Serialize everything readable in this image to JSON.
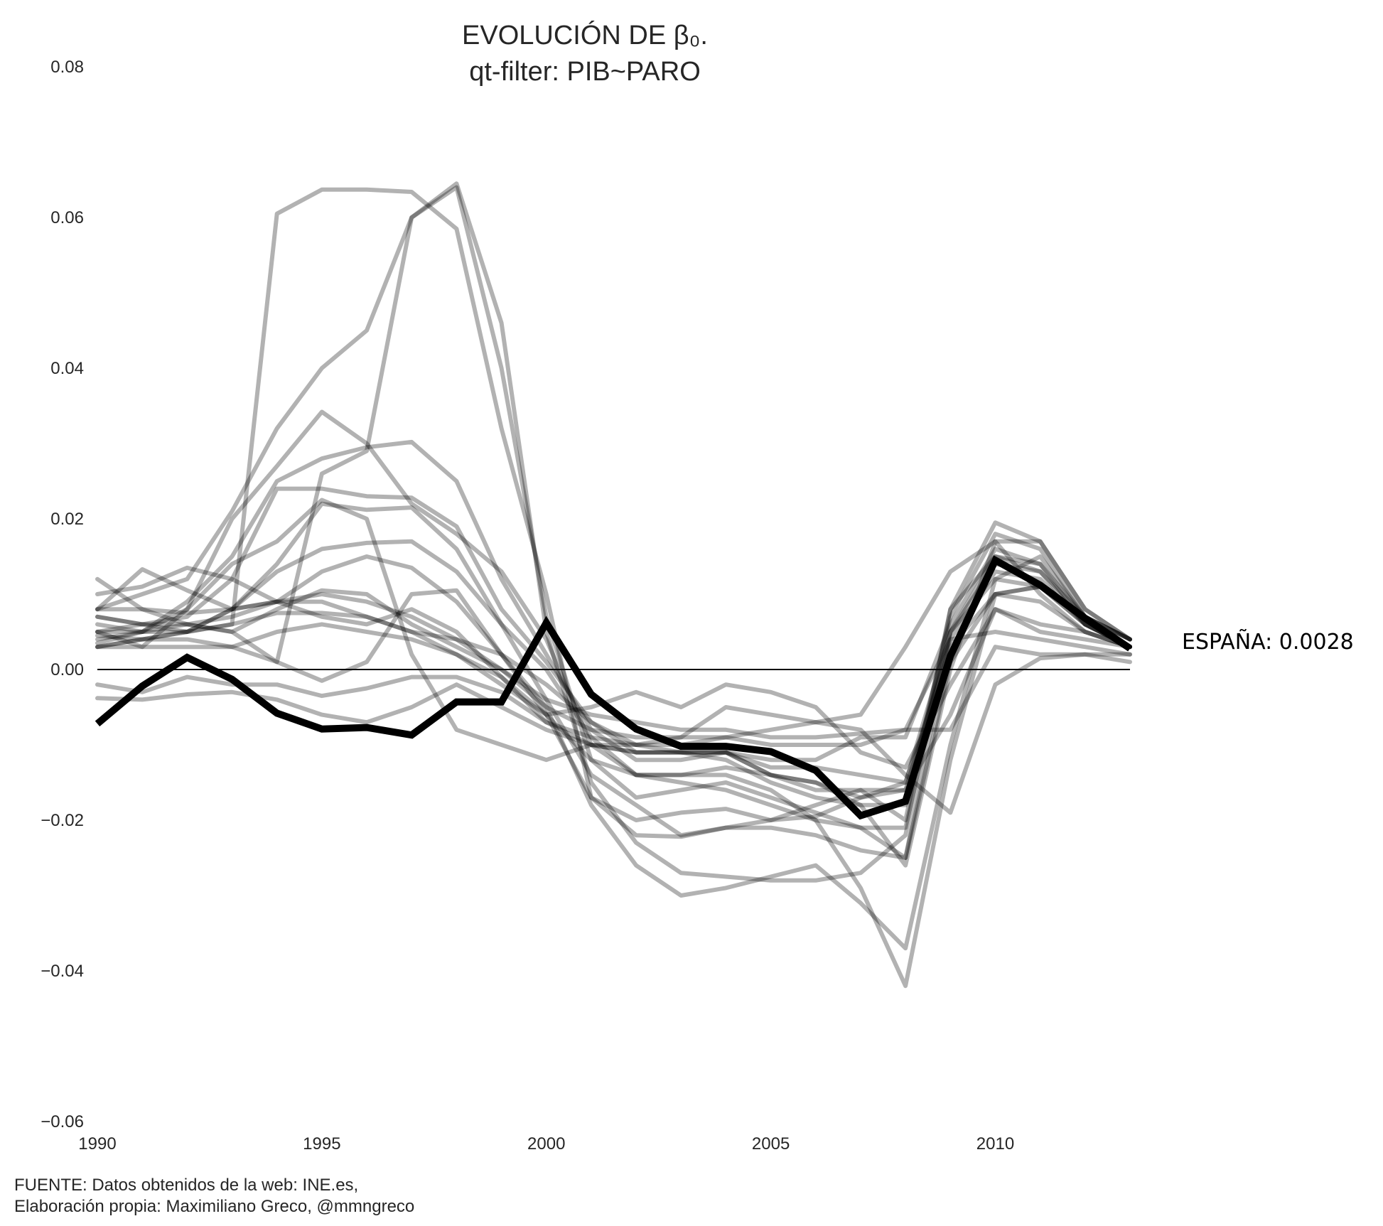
{
  "chart_data": {
    "type": "line",
    "title_line1": "EVOLUCIÓN DE β₀.",
    "title_line2": "qt-filter: PIB~PARO",
    "x": [
      1990,
      1991,
      1992,
      1993,
      1994,
      1995,
      1996,
      1997,
      1998,
      1999,
      2000,
      2001,
      2002,
      2003,
      2004,
      2005,
      2006,
      2007,
      2008,
      2009,
      2010,
      2011,
      2012,
      2013
    ],
    "xlim": [
      1990,
      2013
    ],
    "ylim": [
      -0.06,
      0.08
    ],
    "x_ticks": [
      1990,
      1995,
      2000,
      2005,
      2010
    ],
    "x_tick_labels": [
      "1990",
      "1995",
      "2000",
      "2005",
      "2010"
    ],
    "y_ticks": [
      -0.06,
      -0.04,
      -0.02,
      0.0,
      0.02,
      0.04,
      0.06,
      0.08
    ],
    "y_tick_labels": [
      "−0.06",
      "−0.04",
      "−0.02",
      "0.00",
      "0.02",
      "0.04",
      "0.06",
      "0.08"
    ],
    "zero_line": true,
    "grid": false,
    "highlight_color": "#000000",
    "background_series_color": "#000000",
    "background_series_opacity": 0.3,
    "highlight_series": {
      "name": "ESPAÑA",
      "label": "ESPAÑA: 0.0028",
      "values": [
        -0.0072,
        -0.0022,
        0.0016,
        -0.0013,
        -0.0058,
        -0.0079,
        -0.0077,
        -0.0087,
        -0.0043,
        -0.0043,
        0.0062,
        -0.0033,
        -0.0079,
        -0.0102,
        -0.0102,
        -0.0109,
        -0.0134,
        -0.0194,
        -0.0175,
        0.0018,
        0.0145,
        0.0112,
        0.0068,
        0.0028
      ]
    },
    "series": [
      {
        "values": [
          0.0045,
          0.004,
          0.005,
          0.006,
          0.0605,
          0.0637,
          0.0637,
          0.0634,
          0.0585,
          0.032,
          0.01,
          -0.017,
          -0.02,
          -0.019,
          -0.0185,
          -0.02,
          -0.0195,
          -0.017,
          -0.015,
          0.005,
          0.012,
          0.011,
          0.007,
          0.004
        ]
      },
      {
        "values": [
          0.0035,
          0.005,
          0.006,
          0.005,
          0.001,
          0.026,
          0.029,
          0.06,
          0.0645,
          0.046,
          0.005,
          -0.015,
          -0.023,
          -0.027,
          -0.0275,
          -0.028,
          -0.028,
          -0.027,
          -0.022,
          0.008,
          0.015,
          0.013,
          0.007,
          0.003
        ]
      },
      {
        "values": [
          0.008,
          0.01,
          0.012,
          0.021,
          0.032,
          0.04,
          0.045,
          0.06,
          0.064,
          0.04,
          0.007,
          -0.012,
          -0.017,
          -0.016,
          -0.015,
          -0.017,
          -0.019,
          -0.021,
          -0.025,
          0.001,
          0.01,
          0.011,
          0.006,
          0.003
        ]
      },
      {
        "values": [
          0.005,
          0.003,
          0.008,
          0.02,
          0.027,
          0.0342,
          0.03,
          0.022,
          0.018,
          0.013,
          0.004,
          -0.01,
          -0.014,
          -0.014,
          -0.013,
          -0.014,
          -0.015,
          -0.018,
          -0.026,
          0.0,
          0.017,
          0.017,
          0.008,
          0.004
        ]
      },
      {
        "values": [
          0.006,
          0.005,
          0.009,
          0.015,
          0.025,
          0.028,
          0.0295,
          0.0302,
          0.025,
          0.012,
          0.002,
          -0.008,
          -0.012,
          -0.012,
          -0.011,
          -0.014,
          -0.016,
          -0.016,
          -0.02,
          0.008,
          0.0195,
          0.017,
          0.008,
          0.004
        ]
      },
      {
        "values": [
          0.007,
          0.006,
          0.007,
          0.012,
          0.024,
          0.024,
          0.023,
          0.0228,
          0.019,
          0.008,
          0.001,
          -0.007,
          -0.01,
          -0.011,
          -0.012,
          -0.015,
          -0.017,
          -0.018,
          -0.018,
          0.007,
          0.018,
          0.016,
          0.007,
          0.004
        ]
      },
      {
        "values": [
          0.004,
          0.005,
          0.008,
          0.014,
          0.017,
          0.0225,
          0.02,
          0.002,
          -0.008,
          -0.01,
          -0.012,
          -0.01,
          -0.011,
          -0.011,
          -0.011,
          -0.012,
          -0.012,
          -0.009,
          -0.009,
          0.006,
          0.016,
          0.014,
          0.006,
          0.003
        ]
      },
      {
        "values": [
          0.007,
          0.006,
          0.005,
          0.008,
          0.014,
          0.022,
          0.0212,
          0.0215,
          0.016,
          0.006,
          0.0,
          -0.009,
          -0.014,
          -0.015,
          -0.016,
          -0.018,
          -0.02,
          -0.021,
          -0.021,
          0.005,
          0.015,
          0.014,
          0.007,
          0.004
        ]
      },
      {
        "values": [
          0.003,
          0.004,
          0.005,
          0.008,
          0.013,
          0.016,
          0.0168,
          0.017,
          0.013,
          0.006,
          -0.004,
          -0.014,
          -0.018,
          -0.022,
          -0.021,
          -0.02,
          -0.018,
          -0.016,
          -0.016,
          0.004,
          0.013,
          0.012,
          0.006,
          0.003
        ]
      },
      {
        "values": [
          0.005,
          0.006,
          0.006,
          0.007,
          0.009,
          0.013,
          0.015,
          0.0135,
          0.009,
          0.002,
          -0.006,
          -0.017,
          -0.022,
          -0.0222,
          -0.021,
          -0.021,
          -0.022,
          -0.024,
          -0.025,
          0.005,
          0.014,
          0.013,
          0.006,
          0.003
        ]
      },
      {
        "values": [
          0.012,
          0.008,
          0.006,
          0.005,
          0.008,
          0.0105,
          0.01,
          0.006,
          0.003,
          0.0,
          -0.005,
          -0.018,
          -0.026,
          -0.03,
          -0.029,
          -0.0275,
          -0.026,
          -0.031,
          -0.037,
          -0.01,
          0.012,
          0.015,
          0.007,
          0.004
        ]
      },
      {
        "values": [
          0.008,
          0.0133,
          0.0105,
          0.008,
          0.009,
          0.009,
          0.007,
          0.005,
          0.002,
          -0.001,
          -0.006,
          -0.012,
          -0.014,
          -0.014,
          -0.014,
          -0.016,
          -0.02,
          -0.029,
          -0.042,
          -0.012,
          0.01,
          0.011,
          0.006,
          0.003
        ]
      },
      {
        "values": [
          0.01,
          0.011,
          0.0135,
          0.012,
          0.009,
          0.007,
          0.006,
          0.008,
          0.005,
          -0.001,
          -0.007,
          -0.009,
          -0.01,
          -0.01,
          -0.009,
          -0.008,
          -0.007,
          -0.006,
          0.003,
          0.013,
          0.017,
          0.01,
          0.005,
          0.003
        ]
      },
      {
        "values": [
          0.008,
          0.008,
          0.0075,
          0.008,
          0.009,
          0.01,
          0.009,
          0.007,
          0.004,
          0.002,
          -0.002,
          -0.007,
          -0.011,
          -0.011,
          -0.011,
          -0.013,
          -0.013,
          -0.014,
          -0.015,
          0.003,
          0.01,
          0.009,
          0.005,
          0.003
        ]
      },
      {
        "values": [
          0.005,
          0.005,
          0.005,
          0.006,
          0.0075,
          0.0075,
          0.007,
          0.005,
          0.004,
          0.0,
          -0.004,
          -0.006,
          -0.007,
          -0.008,
          -0.008,
          -0.009,
          -0.009,
          -0.0085,
          -0.008,
          0.004,
          0.005,
          0.004,
          0.003,
          0.002
        ]
      },
      {
        "values": [
          0.003,
          0.004,
          0.004,
          0.003,
          0.001,
          -0.0015,
          0.001,
          0.01,
          0.0105,
          0.002,
          -0.005,
          -0.008,
          -0.009,
          -0.009,
          -0.009,
          -0.01,
          -0.01,
          -0.01,
          -0.008,
          -0.008,
          0.003,
          0.002,
          0.002,
          0.001
        ]
      },
      {
        "values": [
          0.003,
          0.003,
          0.003,
          0.003,
          0.005,
          0.006,
          0.005,
          0.004,
          0.002,
          -0.002,
          -0.006,
          -0.005,
          -0.003,
          -0.005,
          -0.002,
          -0.003,
          -0.005,
          -0.011,
          -0.013,
          -0.002,
          0.008,
          0.006,
          0.005,
          0.003
        ]
      },
      {
        "values": [
          -0.002,
          -0.003,
          -0.001,
          -0.002,
          -0.002,
          -0.0035,
          -0.0025,
          -0.001,
          -0.001,
          -0.003,
          -0.007,
          -0.01,
          -0.011,
          -0.011,
          -0.011,
          -0.014,
          -0.015,
          -0.017,
          -0.016,
          -0.006,
          0.008,
          0.005,
          0.004,
          0.003
        ]
      },
      {
        "values": [
          -0.0038,
          -0.004,
          -0.0033,
          -0.003,
          -0.004,
          -0.006,
          -0.007,
          -0.005,
          -0.002,
          -0.005,
          -0.008,
          -0.01,
          -0.01,
          -0.009,
          -0.005,
          -0.006,
          -0.007,
          -0.008,
          -0.014,
          -0.019,
          -0.002,
          0.0015,
          0.002,
          0.002
        ]
      }
    ],
    "source_line1": "FUENTE: Datos obtenidos de la web: INE.es,",
    "source_line2": "Elaboración propia: Maximiliano Greco, @mmngreco"
  }
}
